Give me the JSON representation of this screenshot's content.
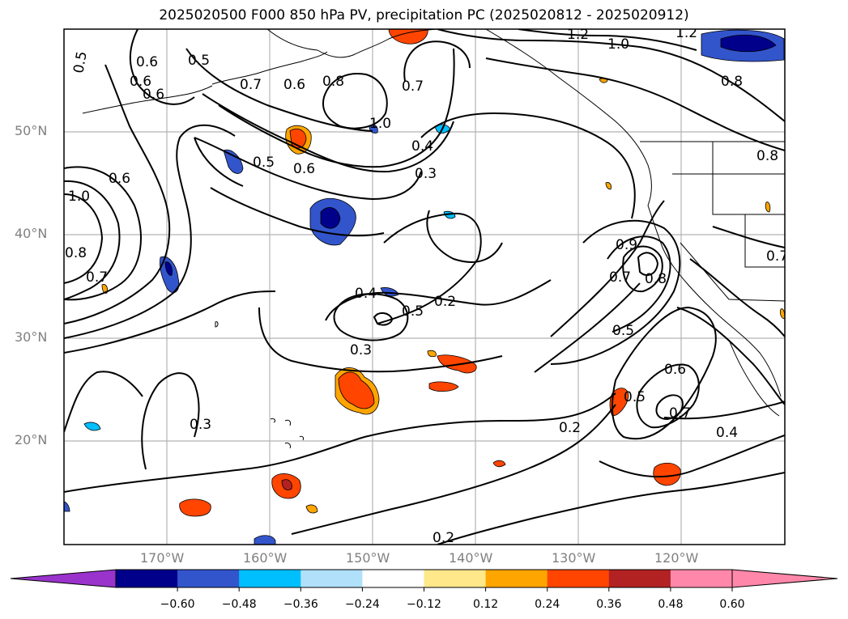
{
  "title": "2025020500 F000 850 hPa PV, precipitation PC (2025020812 - 2025020912)",
  "lat_labels": [
    "50°N",
    "40°N",
    "30°N",
    "20°N"
  ],
  "lon_labels": [
    "170°W",
    "160°W",
    "150°W",
    "140°W",
    "130°W",
    "120°W"
  ],
  "map": {
    "extent_lon": [
      -180,
      -110
    ],
    "extent_lat": [
      10,
      60
    ],
    "gridlines": true,
    "contour_variable": "850 hPa PV",
    "shaded_variable": "precipitation PC",
    "contour_labels": [
      "0.5",
      "0.6",
      "0.5",
      "0.6",
      "0.6",
      "0.7",
      "0.6",
      "0.8",
      "0.7",
      "1.0",
      "0.4",
      "0.3",
      "1.2",
      "1.0",
      "1.2",
      "0.8",
      "0.8",
      "0.5",
      "0.6",
      "0.6",
      "1.0",
      "0.8",
      "0.7",
      "0.4",
      "0.5",
      "0.2",
      "0.3",
      "0.9",
      "0.8",
      "0.7",
      "0.5",
      "0.3",
      "0.6",
      "0.5",
      "0.7",
      "0.4",
      "0.2",
      "0.2",
      "0.7"
    ]
  },
  "colorbar": {
    "ticks": [
      "−0.60",
      "−0.48",
      "−0.36",
      "−0.24",
      "−0.12",
      "0.12",
      "0.24",
      "0.36",
      "0.48",
      "0.60"
    ],
    "colors": [
      "#9933cc",
      "#00008b",
      "#3355cc",
      "#00bfff",
      "#b0e0fa",
      "#ffffff",
      "#ffe88a",
      "#ffa500",
      "#ff4500",
      "#b22222",
      "#ff88aa",
      "#ff88aa"
    ],
    "extend": "both"
  }
}
